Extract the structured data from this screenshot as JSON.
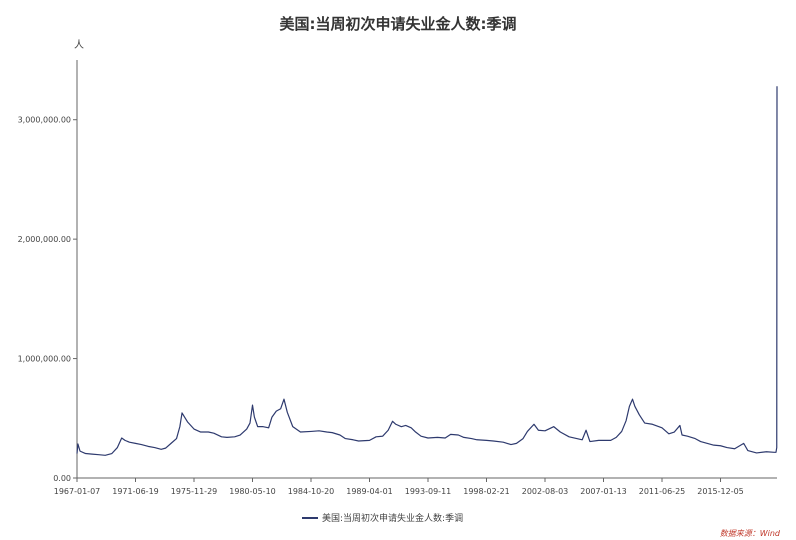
{
  "chart_data": {
    "type": "line",
    "title": "美国:当周初次申请失业金人数:季调",
    "ylabel": "人",
    "xlabel": "",
    "ylim": [
      0,
      3500000
    ],
    "y_ticks": [
      {
        "value": 0,
        "label": "0.00"
      },
      {
        "value": 1000000,
        "label": "1,000,000.00"
      },
      {
        "value": 2000000,
        "label": "2,000,000.00"
      },
      {
        "value": 3000000,
        "label": "3,000,000.00"
      }
    ],
    "x_ticks": [
      "1967-01-07",
      "1971-06-19",
      "1975-11-29",
      "1980-05-10",
      "1984-10-20",
      "1989-04-01",
      "1993-09-11",
      "1998-02-21",
      "2002-08-03",
      "2007-01-13",
      "2011-06-25",
      "2015-12-05"
    ],
    "x_range": [
      "1967-01-07",
      "2020-03-21"
    ],
    "grid": false,
    "legend_position": "bottom-center",
    "series": [
      {
        "name": "美国:当周初次申请失业金人数:季调",
        "color": "#2e3a6e",
        "points": [
          [
            "1967-01-07",
            205000
          ],
          [
            "1967-02-01",
            285000
          ],
          [
            "1967-04-01",
            225000
          ],
          [
            "1967-09-01",
            205000
          ],
          [
            "1968-03-01",
            200000
          ],
          [
            "1968-09-01",
            195000
          ],
          [
            "1969-03-01",
            190000
          ],
          [
            "1969-09-01",
            205000
          ],
          [
            "1970-02-01",
            255000
          ],
          [
            "1970-06-01",
            335000
          ],
          [
            "1970-09-01",
            315000
          ],
          [
            "1971-01-01",
            300000
          ],
          [
            "1971-06-19",
            290000
          ],
          [
            "1971-12-01",
            280000
          ],
          [
            "1972-06-01",
            265000
          ],
          [
            "1972-12-01",
            255000
          ],
          [
            "1973-06-01",
            240000
          ],
          [
            "1973-10-01",
            250000
          ],
          [
            "1974-03-01",
            290000
          ],
          [
            "1974-08-01",
            330000
          ],
          [
            "1974-11-01",
            430000
          ],
          [
            "1975-01-01",
            545000
          ],
          [
            "1975-03-01",
            515000
          ],
          [
            "1975-06-01",
            470000
          ],
          [
            "1975-11-29",
            410000
          ],
          [
            "1976-06-01",
            385000
          ],
          [
            "1977-01-01",
            385000
          ],
          [
            "1977-06-01",
            375000
          ],
          [
            "1978-01-01",
            345000
          ],
          [
            "1978-06-01",
            340000
          ],
          [
            "1979-01-01",
            345000
          ],
          [
            "1979-06-01",
            360000
          ],
          [
            "1979-12-01",
            410000
          ],
          [
            "1980-03-01",
            460000
          ],
          [
            "1980-05-10",
            610000
          ],
          [
            "1980-07-01",
            510000
          ],
          [
            "1980-10-01",
            430000
          ],
          [
            "1981-03-01",
            430000
          ],
          [
            "1981-08-01",
            420000
          ],
          [
            "1981-11-01",
            510000
          ],
          [
            "1982-03-01",
            560000
          ],
          [
            "1982-07-01",
            580000
          ],
          [
            "1982-10-01",
            660000
          ],
          [
            "1983-01-01",
            550000
          ],
          [
            "1983-06-01",
            430000
          ],
          [
            "1984-01-01",
            385000
          ],
          [
            "1984-10-20",
            390000
          ],
          [
            "1985-06-01",
            395000
          ],
          [
            "1986-01-01",
            385000
          ],
          [
            "1986-06-01",
            380000
          ],
          [
            "1987-01-01",
            360000
          ],
          [
            "1987-06-01",
            330000
          ],
          [
            "1988-01-01",
            320000
          ],
          [
            "1988-06-01",
            310000
          ],
          [
            "1989-04-01",
            315000
          ],
          [
            "1989-10-01",
            345000
          ],
          [
            "1990-04-01",
            350000
          ],
          [
            "1990-09-01",
            400000
          ],
          [
            "1991-01-01",
            475000
          ],
          [
            "1991-04-01",
            450000
          ],
          [
            "1991-09-01",
            430000
          ],
          [
            "1992-01-01",
            440000
          ],
          [
            "1992-06-01",
            420000
          ],
          [
            "1992-10-01",
            385000
          ],
          [
            "1993-03-01",
            350000
          ],
          [
            "1993-09-11",
            335000
          ],
          [
            "1994-06-01",
            340000
          ],
          [
            "1995-01-01",
            335000
          ],
          [
            "1995-06-01",
            365000
          ],
          [
            "1996-01-01",
            360000
          ],
          [
            "1996-06-01",
            340000
          ],
          [
            "1997-01-01",
            330000
          ],
          [
            "1997-06-01",
            320000
          ],
          [
            "1998-02-21",
            315000
          ],
          [
            "1998-09-01",
            310000
          ],
          [
            "1999-06-01",
            300000
          ],
          [
            "2000-01-01",
            280000
          ],
          [
            "2000-06-01",
            290000
          ],
          [
            "2000-12-01",
            330000
          ],
          [
            "2001-04-01",
            390000
          ],
          [
            "2001-10-01",
            450000
          ],
          [
            "2002-02-01",
            400000
          ],
          [
            "2002-08-03",
            395000
          ],
          [
            "2003-04-01",
            430000
          ],
          [
            "2003-10-01",
            385000
          ],
          [
            "2004-06-01",
            345000
          ],
          [
            "2005-01-01",
            330000
          ],
          [
            "2005-06-01",
            320000
          ],
          [
            "2005-09-15",
            400000
          ],
          [
            "2006-01-01",
            305000
          ],
          [
            "2006-09-01",
            315000
          ],
          [
            "2007-01-13",
            315000
          ],
          [
            "2007-08-01",
            315000
          ],
          [
            "2008-01-01",
            340000
          ],
          [
            "2008-06-01",
            390000
          ],
          [
            "2008-10-01",
            480000
          ],
          [
            "2009-01-01",
            600000
          ],
          [
            "2009-03-28",
            660000
          ],
          [
            "2009-06-01",
            600000
          ],
          [
            "2009-10-01",
            530000
          ],
          [
            "2010-03-01",
            460000
          ],
          [
            "2010-10-01",
            450000
          ],
          [
            "2011-06-25",
            420000
          ],
          [
            "2012-01-01",
            370000
          ],
          [
            "2012-06-01",
            385000
          ],
          [
            "2012-11-03",
            440000
          ],
          [
            "2013-01-01",
            360000
          ],
          [
            "2013-06-01",
            350000
          ],
          [
            "2014-01-01",
            330000
          ],
          [
            "2014-06-01",
            305000
          ],
          [
            "2015-06-01",
            275000
          ],
          [
            "2015-12-05",
            270000
          ],
          [
            "2016-06-01",
            255000
          ],
          [
            "2017-01-01",
            245000
          ],
          [
            "2017-09-09",
            290000
          ],
          [
            "2018-01-01",
            230000
          ],
          [
            "2018-09-01",
            210000
          ],
          [
            "2019-06-01",
            220000
          ],
          [
            "2020-01-04",
            215000
          ],
          [
            "2020-02-22",
            215000
          ],
          [
            "2020-03-14",
            255000
          ],
          [
            "2020-03-21",
            3280000
          ]
        ]
      }
    ]
  },
  "source": "数据来源：Wind"
}
